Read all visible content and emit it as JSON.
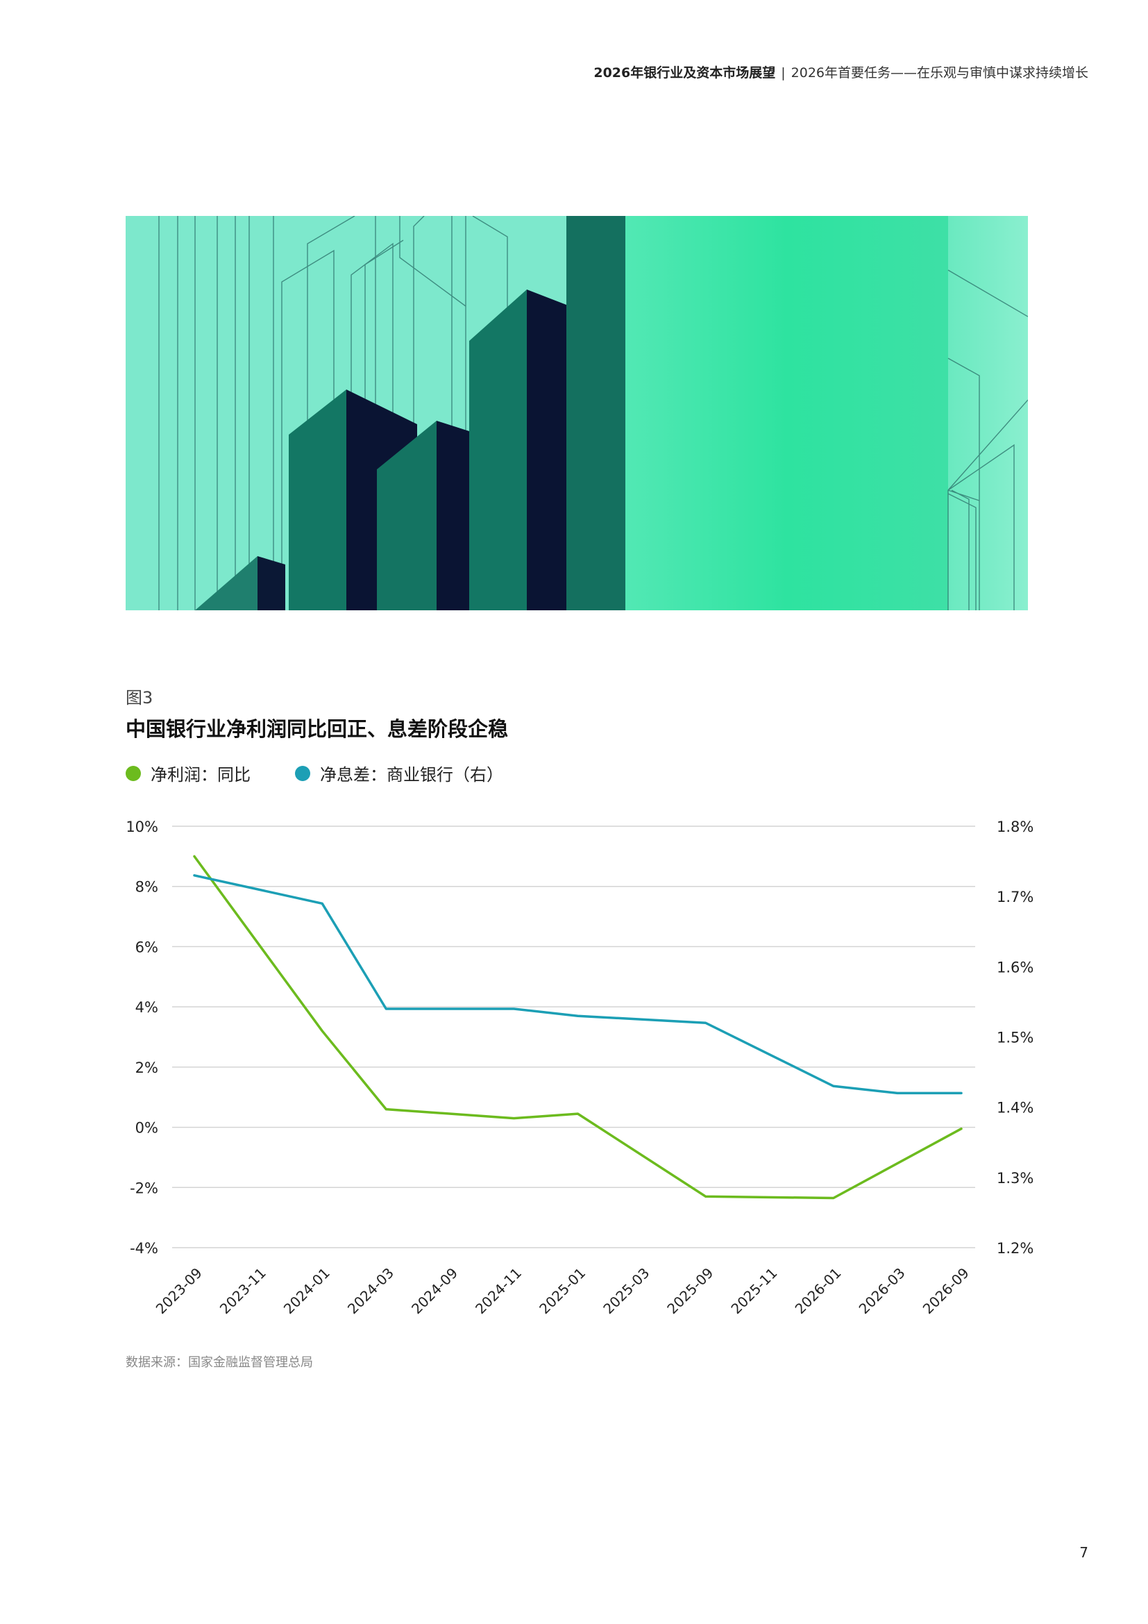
{
  "header": {
    "report_title": "2026年银行业及资本市场展望",
    "separator": "|",
    "section_title": "2026年首要任务——在乐观与审慎中谋求持续增长"
  },
  "figure": {
    "label": "图3",
    "title": "中国银行业净利润同比回正、息差阶段企稳",
    "source": "数据来源：国家金融监督管理总局"
  },
  "page_number": "7",
  "colors": {
    "net_profit": "#6cbb1e",
    "nim": "#1c9fb5",
    "grid": "#d4d4d4",
    "hero_bg": "#7de8cc",
    "hero_glow": "#2ee3a0",
    "hero_dark": "#0a1433",
    "hero_teal": "#137764"
  },
  "chart_data": {
    "type": "line",
    "categories": [
      "2023-09",
      "2023-11",
      "2024-01",
      "2024-03",
      "2024-09",
      "2024-11",
      "2025-01",
      "2025-03",
      "2025-09",
      "2025-11",
      "2026-01",
      "2026-03",
      "2026-09"
    ],
    "series": [
      {
        "name": "净利润：同比",
        "axis": "left",
        "color": "#6cbb1e",
        "points": [
          {
            "x": "2023-09",
            "y": 9.0
          },
          {
            "x": "2024-01",
            "y": 3.2
          },
          {
            "x": "2024-03",
            "y": 0.6
          },
          {
            "x": "2024-11",
            "y": 0.3
          },
          {
            "x": "2025-01",
            "y": 0.45
          },
          {
            "x": "2025-09",
            "y": -2.3
          },
          {
            "x": "2026-01",
            "y": -2.35
          },
          {
            "x": "2026-09",
            "y": -0.05
          }
        ]
      },
      {
        "name": "净息差：商业银行（右）",
        "axis": "right",
        "color": "#1c9fb5",
        "points": [
          {
            "x": "2023-09",
            "y": 1.73
          },
          {
            "x": "2024-01",
            "y": 1.69
          },
          {
            "x": "2024-03",
            "y": 1.54
          },
          {
            "x": "2024-11",
            "y": 1.54
          },
          {
            "x": "2025-01",
            "y": 1.53
          },
          {
            "x": "2025-09",
            "y": 1.52
          },
          {
            "x": "2026-01",
            "y": 1.43
          },
          {
            "x": "2026-03",
            "y": 1.42
          },
          {
            "x": "2026-09",
            "y": 1.42
          }
        ]
      }
    ],
    "y_left": {
      "min": -4,
      "max": 10,
      "step": 2,
      "unit": "%",
      "tick_labels": [
        "10%",
        "8%",
        "6%",
        "4%",
        "2%",
        "0%",
        "-2%",
        "-4%"
      ]
    },
    "y_right": {
      "min": 1.2,
      "max": 1.8,
      "step": 0.1,
      "unit": "%",
      "tick_labels": [
        "1.8%",
        "1.7%",
        "1.6%",
        "1.5%",
        "1.4%",
        "1.3%",
        "1.2%"
      ]
    },
    "grid": true,
    "legend_position": "top-left"
  }
}
